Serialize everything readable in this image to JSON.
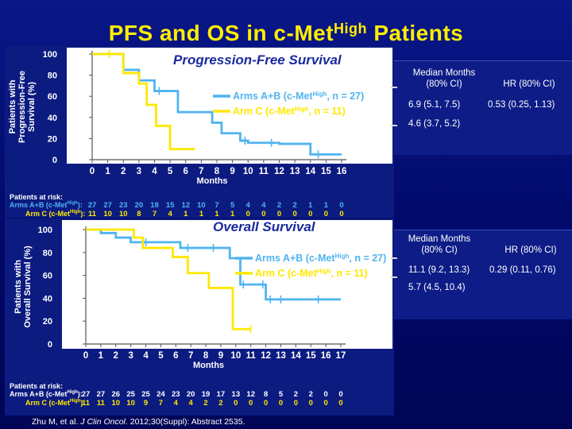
{
  "page_title": {
    "text_before": "PFS and OS in c-Met",
    "superscript": "High",
    "text_after": " Patients"
  },
  "colors": {
    "background": "#000a6e",
    "title": "#ffee00",
    "arms_ab": "#4fb4f0",
    "arm_c": "#ffe800",
    "axis": "#ffffff"
  },
  "chart_data": [
    {
      "type": "line",
      "title": "Progression-Free Survival",
      "ylabel": "Patients with Progression-Free Survival (%)",
      "xlabel": "Months",
      "x_ticks": [
        "0",
        "1",
        "2",
        "3",
        "4",
        "5",
        "6",
        "7",
        "8",
        "9",
        "10",
        "11",
        "12",
        "13",
        "14",
        "15",
        "16"
      ],
      "y_ticks": [
        "0",
        "20",
        "40",
        "60",
        "80",
        "100"
      ],
      "xlim": [
        0,
        16
      ],
      "ylim": [
        0,
        100
      ],
      "series": [
        {
          "name": "Arms A+B (c-MetHigh, n = 27)",
          "legend_main": "Arms A+B (c-Met",
          "legend_sup": "High",
          "legend_tail": ", n = 27)",
          "color": "#4fb4f0",
          "x": [
            0,
            2,
            2,
            3,
            3,
            4,
            4,
            5.5,
            5.5,
            7.7,
            7.7,
            8.3,
            8.3,
            9.5,
            9.5,
            10,
            10,
            12,
            12,
            14,
            14,
            16
          ],
          "y": [
            100,
            100,
            85,
            85,
            75,
            75,
            65,
            65,
            45,
            45,
            35,
            35,
            25,
            25,
            18,
            18,
            16,
            16,
            15,
            15,
            5,
            5
          ],
          "censor_x": [
            4.3,
            9.8,
            11.5,
            14.5
          ]
        },
        {
          "name": "Arm C (c-MetHigh, n = 11)",
          "legend_main": "Arm C (c-Met",
          "legend_sup": "High",
          "legend_tail": ", n = 11)",
          "color": "#ffe800",
          "x": [
            0,
            2,
            2,
            3,
            3,
            3.5,
            3.5,
            4.1,
            4.1,
            5,
            5,
            6.6
          ],
          "y": [
            100,
            100,
            82,
            82,
            72,
            72,
            52,
            52,
            32,
            32,
            10,
            10
          ],
          "censor_x": [
            1.1
          ]
        }
      ],
      "side_panel": {
        "header_median": [
          "Median Months",
          "(80% CI)"
        ],
        "header_hr": "HR (80% CI)",
        "row1_median": "6.9 (5.1, 7.5)",
        "row1_hr": "0.53 (0.25, 1.13)",
        "row2_median": "4.6 (3.7, 5.2)"
      },
      "at_risk": {
        "label": "Patients at risk:",
        "rows": [
          {
            "label_main": "Arms A+B (c-Met",
            "label_sup": "High",
            "label_tail": "):",
            "color": "#4fb4f0",
            "values": [
              "27",
              "27",
              "23",
              "20",
              "18",
              "15",
              "12",
              "10",
              "7",
              "5",
              "4",
              "4",
              "2",
              "2",
              "1",
              "1",
              "0"
            ]
          },
          {
            "label_main": "Arm C (c-Met",
            "label_sup": "High",
            "label_tail": "):",
            "color": "#ffe800",
            "values": [
              "11",
              "10",
              "10",
              "8",
              "7",
              "4",
              "1",
              "1",
              "1",
              "1",
              "0",
              "0",
              "0",
              "0",
              "0",
              "0",
              "0"
            ]
          }
        ]
      }
    },
    {
      "type": "line",
      "title": "Overall Survival",
      "ylabel": "Patients with Overall Survival (%)",
      "xlabel": "Months",
      "x_ticks": [
        "0",
        "1",
        "2",
        "3",
        "4",
        "5",
        "6",
        "7",
        "8",
        "9",
        "10",
        "11",
        "12",
        "13",
        "14",
        "15",
        "16",
        "17"
      ],
      "y_ticks": [
        "0",
        "20",
        "40",
        "60",
        "80",
        "100"
      ],
      "xlim": [
        0,
        17
      ],
      "ylim": [
        0,
        100
      ],
      "series": [
        {
          "name": "Arms A+B (c-MetHigh, n = 27)",
          "legend_main": "Arms A+B (c-Met",
          "legend_sup": "High",
          "legend_tail": ", n = 27)",
          "color": "#4fb4f0",
          "x": [
            0,
            1,
            1,
            2,
            2,
            3,
            3,
            6.3,
            6.3,
            9.6,
            9.6,
            10.3,
            10.3,
            12,
            12,
            17
          ],
          "y": [
            100,
            100,
            97,
            97,
            93,
            93,
            89,
            89,
            84,
            84,
            75,
            75,
            52,
            52,
            39,
            39
          ],
          "censor_x": [
            4,
            6.8,
            8.5,
            10.5,
            11.8,
            12.3,
            13,
            15.5
          ]
        },
        {
          "name": "Arm C (c-MetHigh, n = 11)",
          "legend_main": "Arm C (c-Met",
          "legend_sup": "High",
          "legend_tail": ", n = 11)",
          "color": "#ffe800",
          "x": [
            0,
            3.2,
            3.2,
            3.8,
            3.8,
            5.8,
            5.8,
            6.8,
            6.8,
            8.2,
            8.2,
            9.8,
            9.8,
            11
          ],
          "y": [
            100,
            100,
            93,
            93,
            84,
            84,
            76,
            76,
            62,
            62,
            49,
            49,
            13,
            13
          ],
          "censor_x": [
            11
          ]
        }
      ],
      "side_panel": {
        "header_median": [
          "Median Months",
          "(80% CI)"
        ],
        "header_hr": "HR (80% CI)",
        "row1_median": "11.1 (9.2, 13.3)",
        "row1_hr": "0.29 (0.11, 0.76)",
        "row2_median": "5.7 (4.5, 10.4)"
      },
      "at_risk": {
        "label": "Patients at risk:",
        "rows": [
          {
            "label_main": "Arms A+B (c-Met",
            "label_sup": "High",
            "label_tail": "):",
            "color": "#ffffff",
            "values": [
              "27",
              "27",
              "26",
              "25",
              "25",
              "24",
              "23",
              "20",
              "19",
              "17",
              "13",
              "12",
              "8",
              "5",
              "2",
              "2",
              "0",
              "0"
            ]
          },
          {
            "label_main": "Arm C (c-Met",
            "label_sup": "High",
            "label_tail": "):",
            "color": "#ffe800",
            "values": [
              "11",
              "11",
              "10",
              "10",
              "9",
              "7",
              "4",
              "4",
              "2",
              "2",
              "0",
              "0",
              "0",
              "0",
              "0",
              "0",
              "0",
              "0"
            ]
          }
        ]
      }
    }
  ],
  "citation": {
    "authors": "Zhu M, et al. ",
    "journal": "J Clin Oncol",
    "details": ". 2012;30(Suppl): Abstract 2535."
  }
}
